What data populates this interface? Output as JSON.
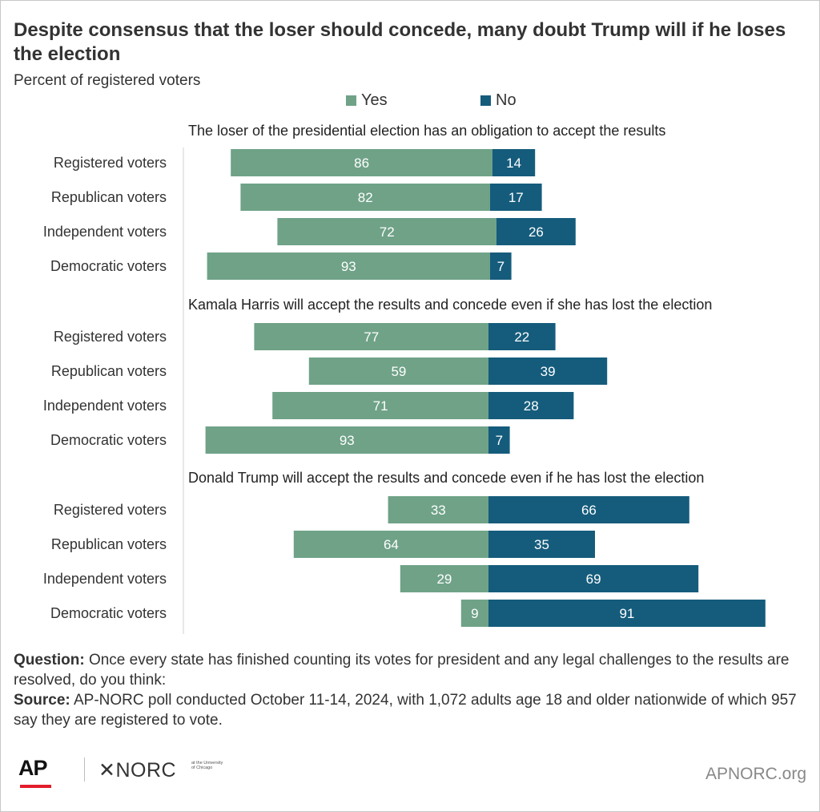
{
  "title": "Despite consensus that the loser should concede, many doubt Trump will if he loses the election",
  "subtitle": "Percent of registered voters",
  "legend": [
    {
      "label": "Yes",
      "color": "#6fa287"
    },
    {
      "label": "No",
      "color": "#155c7c"
    }
  ],
  "chart_data": {
    "type": "bar",
    "orientation": "horizontal-diverging",
    "series": [
      {
        "name": "Yes",
        "color": "#6fa287"
      },
      {
        "name": "No",
        "color": "#155c7c"
      }
    ],
    "panels": [
      {
        "title": "The loser of the presidential election has an obligation to accept the results",
        "categories": [
          "Registered voters",
          "Republican voters",
          "Independent voters",
          "Democratic voters"
        ],
        "yes": [
          86,
          82,
          72,
          93
        ],
        "no": [
          14,
          17,
          26,
          7
        ]
      },
      {
        "title": "Kamala Harris will accept the results and concede even if she has lost the election",
        "categories": [
          "Registered voters",
          "Republican voters",
          "Independent voters",
          "Democratic voters"
        ],
        "yes": [
          77,
          59,
          71,
          93
        ],
        "no": [
          22,
          39,
          28,
          7
        ]
      },
      {
        "title": "Donald Trump will accept the results and concede even if he has lost the election",
        "categories": [
          "Registered voters",
          "Republican voters",
          "Independent voters",
          "Democratic voters"
        ],
        "yes": [
          33,
          64,
          29,
          9
        ],
        "no": [
          66,
          35,
          69,
          91
        ]
      }
    ]
  },
  "footer": {
    "question_label": "Question:",
    "question_text": "Once every state has finished counting its votes for president and any legal challenges to the results are resolved, do you think:",
    "source_label": "Source:",
    "source_text": "AP-NORC poll conducted October 11-14, 2024, with 1,072 adults age 18 and older nationwide of which 957 say they are registered to vote."
  },
  "logos": {
    "ap": "AP",
    "norc": "✕NORC",
    "norc_small": "at the University of Chicago"
  },
  "site": "APNORC.org"
}
